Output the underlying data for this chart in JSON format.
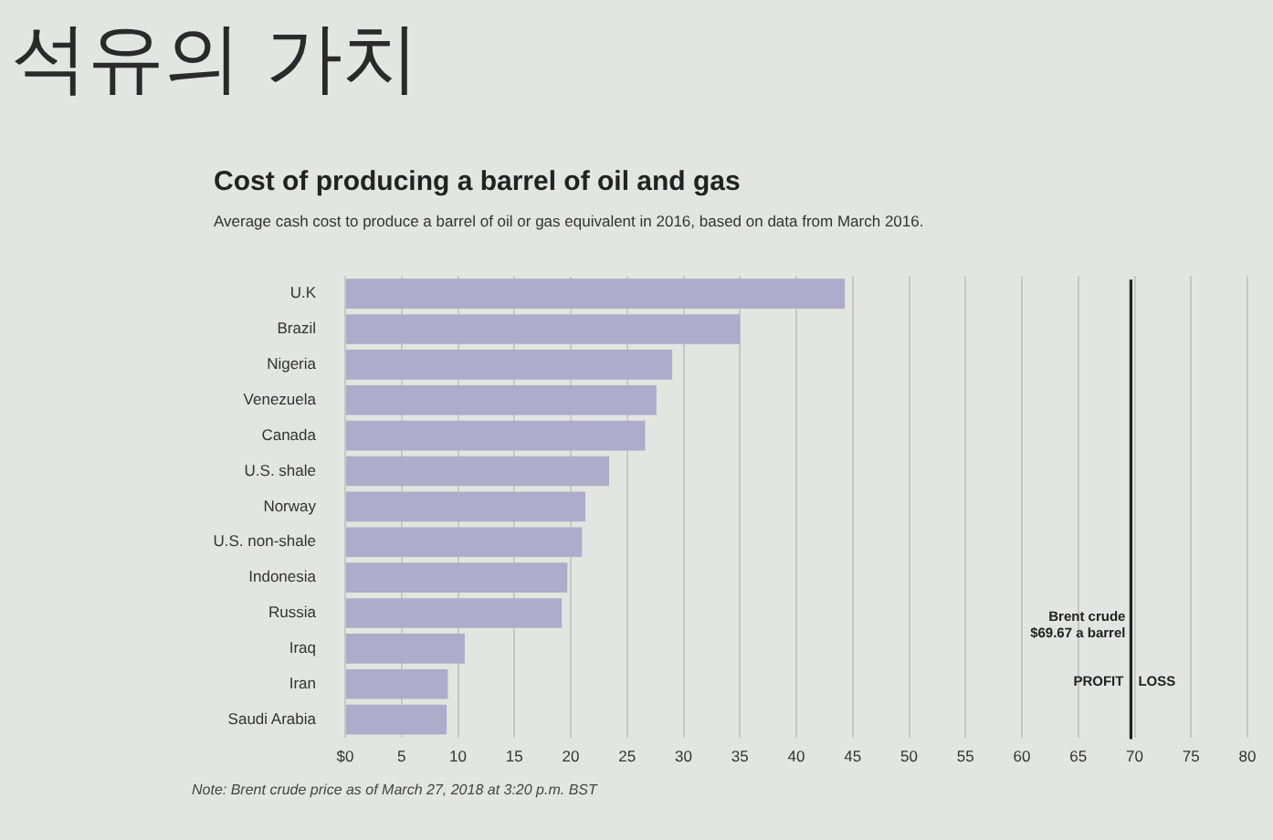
{
  "chart_data": {
    "type": "bar",
    "orientation": "horizontal",
    "title": "Cost of producing a barrel of oil and gas",
    "subtitle": "Average cash cost to produce a barrel of oil or gas equivalent in 2016, based on data from March 2016.",
    "categories": [
      "U.K",
      "Brazil",
      "Nigeria",
      "Venezuela",
      "Canada",
      "U.S. shale",
      "Norway",
      "U.S. non-shale",
      "Indonesia",
      "Russia",
      "Iraq",
      "Iran",
      "Saudi Arabia"
    ],
    "values": [
      44.3,
      35,
      29,
      27.6,
      26.6,
      23.4,
      21.3,
      21,
      19.7,
      19.2,
      10.6,
      9.1,
      9
    ],
    "color": "#adacca",
    "xlim": [
      0,
      80
    ],
    "xticks": [
      {
        "value": 0,
        "label": "$0"
      },
      5,
      10,
      15,
      20,
      25,
      30,
      35,
      40,
      45,
      50,
      55,
      60,
      65,
      70,
      75,
      80
    ],
    "grid": "x",
    "ref_lines": [
      {
        "axis": "x",
        "value": 69.67,
        "label": "Brent crude\n$69.67 a barrel",
        "color": "#222222"
      }
    ],
    "annotations": [
      "석유의 가치",
      {
        "text": "PROFIT",
        "x": 69.67
      },
      {
        "text": "LOSS",
        "x": 69.67
      },
      "Note: Brent crude price as of March 27, 2018 at 3:20 p.m. BST"
    ]
  }
}
